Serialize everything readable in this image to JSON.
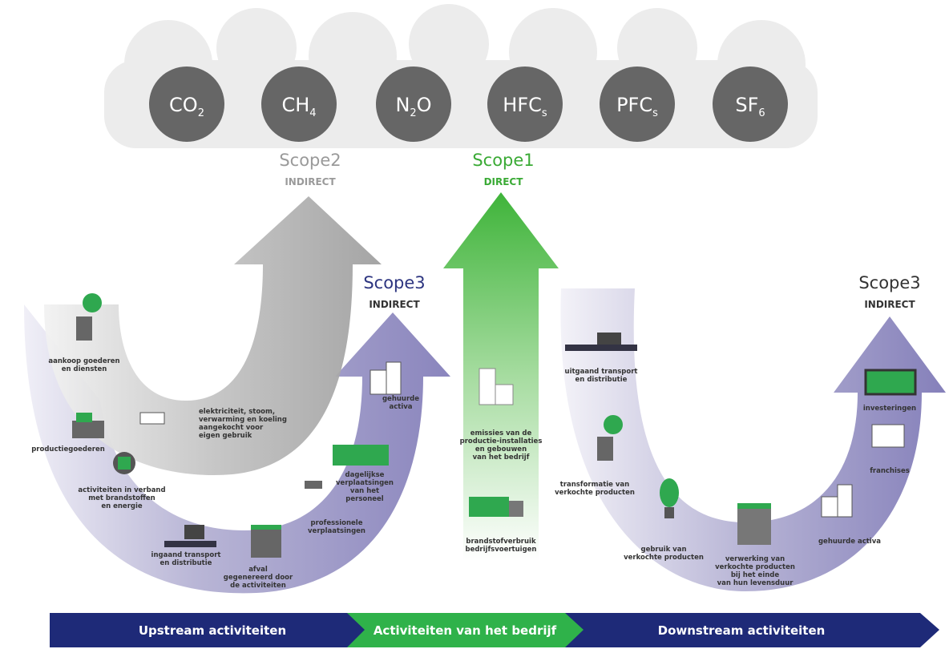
{
  "gases": [
    {
      "parts": [
        "CO",
        "2"
      ]
    },
    {
      "parts": [
        "CH",
        "4"
      ]
    },
    {
      "parts": [
        "N",
        "2",
        "O"
      ]
    },
    {
      "parts": [
        "HFC",
        "s"
      ]
    },
    {
      "parts": [
        "PFC",
        "s"
      ]
    },
    {
      "parts": [
        "SF",
        "6"
      ]
    }
  ],
  "scopes": [
    {
      "title": "Scope2",
      "subtitle": "INDIRECT"
    },
    {
      "title": "Scope1",
      "subtitle": "DIRECT"
    },
    {
      "title": "Scope3",
      "subtitle": "INDIRECT"
    },
    {
      "title": "Scope3",
      "subtitle": "INDIRECT"
    }
  ],
  "activities": [
    {
      "lines": [
        "aankoop goederen",
        "en diensten"
      ]
    },
    {
      "lines": [
        "productiegoederen"
      ]
    },
    {
      "lines": [
        "activiteiten in verband",
        "met brandstoffen",
        "en energie"
      ]
    },
    {
      "lines": [
        "ingaand transport",
        "en distributie"
      ]
    },
    {
      "lines": [
        "afval",
        "gegenereerd door",
        "de activiteiten"
      ]
    },
    {
      "lines": [
        "professionele",
        "verplaatsingen"
      ]
    },
    {
      "lines": [
        "dagelijkse",
        "verplaatsingen",
        "van het",
        "personeel"
      ]
    },
    {
      "lines": [
        "gehuurde",
        "activa"
      ]
    },
    {
      "lines": [
        "elektriciteit, stoom,",
        "verwarming en koeling",
        "aangekocht voor",
        "eigen gebruik"
      ]
    },
    {
      "lines": [
        "emissies van de",
        "productie-installaties",
        "en gebouwen",
        "van het bedrijf"
      ]
    },
    {
      "lines": [
        "brandstofverbruik",
        "bedrijfsvoertuigen"
      ]
    },
    {
      "lines": [
        "uitgaand transport",
        "en distributie"
      ]
    },
    {
      "lines": [
        "transformatie van",
        "verkochte producten"
      ]
    },
    {
      "lines": [
        "gebruik van",
        "verkochte producten"
      ]
    },
    {
      "lines": [
        "verwerking van",
        "verkochte producten",
        "bij het einde",
        "van hun levensduur"
      ]
    },
    {
      "lines": [
        "gehuurde activa"
      ]
    },
    {
      "lines": [
        "franchises"
      ]
    },
    {
      "lines": [
        "investeringen"
      ]
    }
  ],
  "bottom_bar": [
    {
      "label": "Upstream activiteiten"
    },
    {
      "label": "Activiteiten van het bedrijf"
    },
    {
      "label": "Downstream activiteiten"
    }
  ]
}
